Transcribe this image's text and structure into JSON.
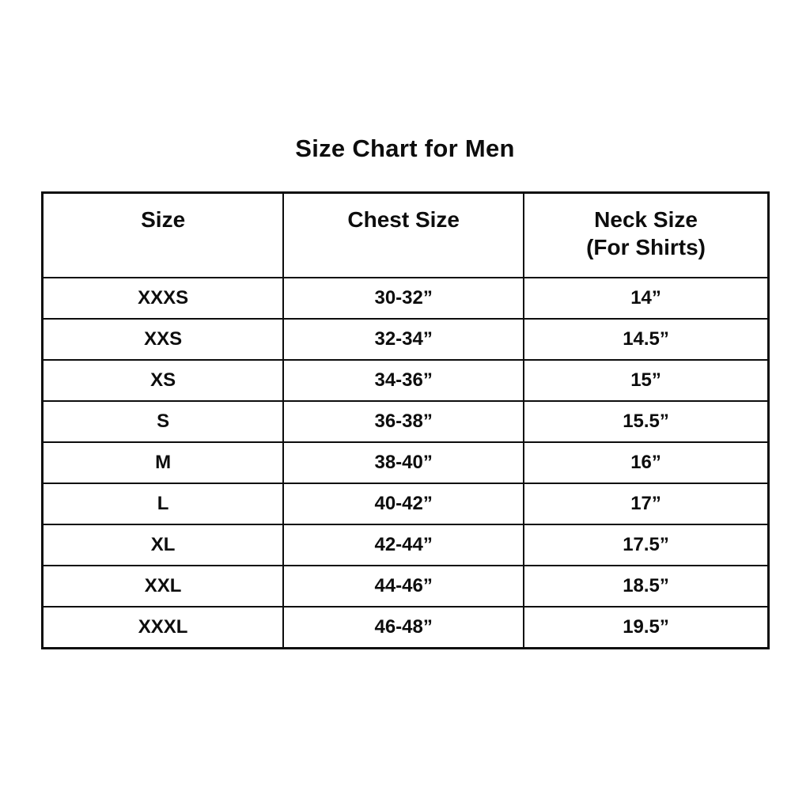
{
  "title": "Size Chart for Men",
  "table": {
    "headers": [
      {
        "label": "Size",
        "sub": ""
      },
      {
        "label": "Chest Size",
        "sub": ""
      },
      {
        "label": "Neck Size",
        "sub": "(For Shirts)"
      }
    ],
    "rows": [
      [
        "XXXS",
        "30-32”",
        "14”"
      ],
      [
        "XXS",
        "32-34”",
        "14.5”"
      ],
      [
        "XS",
        "34-36”",
        "15”"
      ],
      [
        "S",
        "36-38”",
        "15.5”"
      ],
      [
        "M",
        "38-40”",
        "16”"
      ],
      [
        "L",
        "40-42”",
        "17”"
      ],
      [
        "XL",
        "42-44”",
        "17.5”"
      ],
      [
        "XXL",
        "44-46”",
        "18.5”"
      ],
      [
        "XXXL",
        "46-48”",
        "19.5”"
      ]
    ]
  },
  "colors": {
    "background": "#ffffff",
    "text": "#0d0d0d",
    "border": "#0d0d0d"
  }
}
